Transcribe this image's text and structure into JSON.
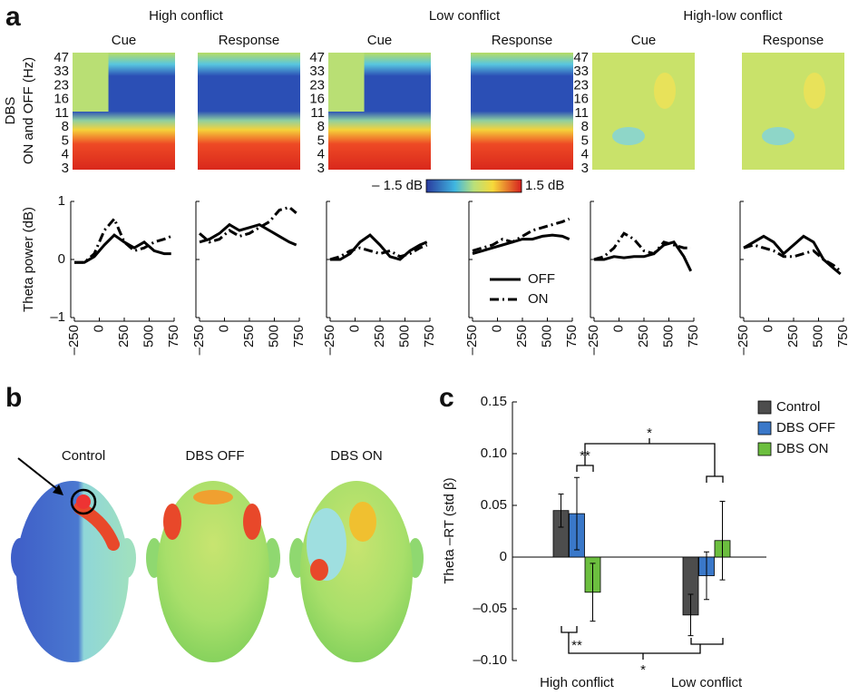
{
  "chart_data": [
    {
      "type": "heatmap",
      "panel_label": "a",
      "groups": [
        {
          "title": "High conflict",
          "columns": [
            "Cue",
            "Response"
          ]
        },
        {
          "title": "Low conflict",
          "columns": [
            "Cue",
            "Response"
          ]
        },
        {
          "title": "High-low conflict",
          "columns": [
            "Cue",
            "Response"
          ]
        }
      ],
      "ylabel": [
        "DBS",
        "ON and OFF (Hz)"
      ],
      "yticks": [
        47,
        33,
        23,
        16,
        11,
        8,
        5,
        4,
        3
      ],
      "colorbar": [
        {
          "value": -1.5,
          "label": "– 1.5 dB"
        },
        {
          "value": 1.5,
          "label": "1.5 dB"
        }
      ]
    },
    {
      "type": "line",
      "ylabel": "Theta power (dB)",
      "xlim": [
        -250,
        750
      ],
      "ylim": [
        -1,
        1
      ],
      "xticks": [
        {
          "value": -250,
          "label": "–250"
        },
        0,
        250,
        500,
        750
      ],
      "yticks": [
        {
          "value": -1,
          "label": "–1"
        },
        0,
        1
      ],
      "x": [
        -250,
        -150,
        -50,
        50,
        150,
        250,
        350,
        450,
        550,
        650,
        720
      ],
      "series": [
        {
          "name": "OFF",
          "color": "#000000",
          "dash": "solid"
        },
        {
          "name": "ON",
          "color": "#000000",
          "dash": "dashdot"
        }
      ],
      "panels": [
        {
          "values": [
            [
              -0.05,
              -0.05,
              0.05,
              0.25,
              0.42,
              0.3,
              0.2,
              0.3,
              0.15,
              0.1,
              0.1
            ],
            [
              -0.05,
              -0.05,
              0.1,
              0.5,
              0.7,
              0.3,
              0.15,
              0.2,
              0.3,
              0.35,
              0.4
            ]
          ]
        },
        {
          "values": [
            [
              0.3,
              0.35,
              0.45,
              0.6,
              0.5,
              0.55,
              0.6,
              0.5,
              0.4,
              0.3,
              0.25
            ],
            [
              0.45,
              0.3,
              0.35,
              0.5,
              0.4,
              0.45,
              0.55,
              0.65,
              0.85,
              0.9,
              0.8
            ]
          ]
        },
        {
          "values": [
            [
              0,
              0,
              0.1,
              0.3,
              0.42,
              0.25,
              0.05,
              0,
              0.15,
              0.25,
              0.3
            ],
            [
              0,
              0.05,
              0.15,
              0.2,
              0.15,
              0.1,
              0.15,
              0.05,
              0.1,
              0.2,
              0.25
            ]
          ]
        },
        {
          "values": [
            [
              0.1,
              0.15,
              0.2,
              0.25,
              0.3,
              0.35,
              0.35,
              0.4,
              0.42,
              0.4,
              0.35
            ],
            [
              0.15,
              0.2,
              0.25,
              0.35,
              0.3,
              0.4,
              0.5,
              0.55,
              0.6,
              0.65,
              0.7
            ]
          ]
        },
        {
          "values": [
            [
              0,
              0,
              0.05,
              0.03,
              0.05,
              0.05,
              0.1,
              0.25,
              0.3,
              0.05,
              -0.2
            ],
            [
              0,
              0.05,
              0.2,
              0.45,
              0.35,
              0.15,
              0.1,
              0.3,
              0.25,
              0.2,
              0.2
            ]
          ]
        },
        {
          "values": [
            [
              0.2,
              0.3,
              0.4,
              0.3,
              0.1,
              0.25,
              0.4,
              0.3,
              0,
              -0.15,
              -0.25
            ],
            [
              0.2,
              0.25,
              0.2,
              0.15,
              0.05,
              0.05,
              0.1,
              0.15,
              0,
              -0.1,
              -0.2
            ]
          ]
        }
      ]
    },
    {
      "type": "image",
      "panel_label": "b",
      "labels": [
        "Control",
        "DBS OFF",
        "DBS ON"
      ]
    },
    {
      "type": "bar",
      "panel_label": "c",
      "ylabel": "Theta –RT (std β)",
      "categories": [
        "High conflict",
        "Low conflict"
      ],
      "ylim": [
        -0.1,
        0.15
      ],
      "yticks": [
        {
          "value": -0.1,
          "label": "–0.10"
        },
        {
          "value": -0.05,
          "label": "–0.05"
        },
        0,
        0.05,
        {
          "value": 0.1,
          "label": "0.10"
        },
        0.15
      ],
      "series": [
        {
          "name": "Control",
          "color": "#4d4d4d",
          "values": [
            0.045,
            -0.056
          ],
          "errors": [
            0.016,
            0.02
          ]
        },
        {
          "name": "DBS OFF",
          "color": "#3a78c9",
          "values": [
            0.042,
            -0.018
          ],
          "errors": [
            0.035,
            0.023
          ]
        },
        {
          "name": "DBS ON",
          "color": "#6cbf3f",
          "values": [
            -0.034,
            0.016
          ],
          "errors": [
            0.028,
            0.038
          ]
        }
      ],
      "annotations": [
        "**",
        "**",
        "*",
        "*"
      ]
    }
  ]
}
